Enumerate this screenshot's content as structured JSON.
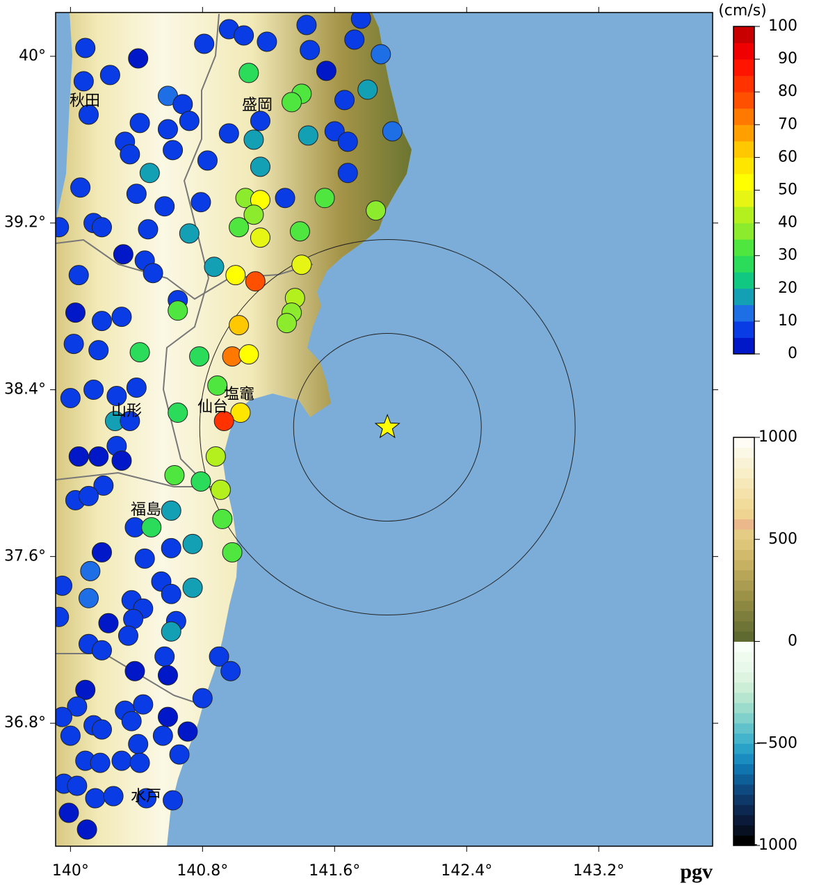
{
  "chart_data": {
    "type": "map",
    "label": "pgv",
    "xlim": [
      139.91,
      143.89
    ],
    "ylim": [
      36.21,
      40.21
    ],
    "xticks": [
      {
        "value": 140,
        "label": "140°"
      },
      {
        "value": 140.8,
        "label": "140.8°"
      },
      {
        "value": 141.6,
        "label": "141.6°"
      },
      {
        "value": 142.4,
        "label": "142.4°"
      },
      {
        "value": 143.2,
        "label": "143.2°"
      }
    ],
    "yticks": [
      {
        "value": 40,
        "label": "40°"
      },
      {
        "value": 39.2,
        "label": "39.2°"
      },
      {
        "value": 38.4,
        "label": "38.4°"
      },
      {
        "value": 37.6,
        "label": "37.6°"
      },
      {
        "value": 36.8,
        "label": "36.8°"
      }
    ],
    "cities": [
      "秋田",
      "盛岡",
      "山形",
      "仙台",
      "塩竈",
      "福島",
      "水戸"
    ],
    "epicenter": {
      "lon": 141.92,
      "lat": 38.22,
      "color": "#ffff00"
    },
    "land_colors": [
      "#6b7530",
      "#a59448",
      "#d8c880",
      "#f2eab8",
      "#fbf8e4"
    ],
    "sea_color": "#7badd8",
    "pgv_scale": {
      "unit": "(cm/s)",
      "lim": [
        0,
        100
      ],
      "ticks": [
        0,
        10,
        20,
        30,
        40,
        50,
        60,
        70,
        80,
        90,
        100
      ],
      "colors": [
        "#0018c8",
        "#0a3ce6",
        "#1e6ee6",
        "#14a0b4",
        "#10c882",
        "#2adc5a",
        "#50e640",
        "#8ceb2d",
        "#b4f01e",
        "#e6f514",
        "#ffff00",
        "#ffe600",
        "#ffc800",
        "#ffa000",
        "#ff7800",
        "#ff5000",
        "#ff3200",
        "#ff1400",
        "#f00000",
        "#c80000"
      ]
    },
    "elevation_scale": {
      "lim": [
        -1000,
        1000
      ],
      "ticks": [
        1000,
        500,
        0,
        {
          "value": -500,
          "label": "−500"
        },
        {
          "value": -1000,
          "label": "−1000"
        }
      ],
      "colors": [
        "#000000",
        "#061020",
        "#0a1a38",
        "#0c2850",
        "#0e3868",
        "#0e4a80",
        "#0e5e98",
        "#1074ae",
        "#1a8cc0",
        "#2aa2c8",
        "#44b4cc",
        "#62c2cc",
        "#80d0cc",
        "#9cdccc",
        "#b6e6d0",
        "#cceed6",
        "#ddf4e0",
        "#e8f8ea",
        "#f0fbf0",
        "#f8fef8",
        "#5f6a30",
        "#6e7436",
        "#7d7e3c",
        "#8c8842",
        "#9b9248",
        "#aa9c50",
        "#b8a658",
        "#c6b062",
        "#d2ba6c",
        "#dcc478",
        "#e4cc84",
        "#eab88a",
        "#eed490",
        "#f2dc9c",
        "#f4e2aa",
        "#f6e8b8",
        "#f8eec8",
        "#faf2d6",
        "#fcf8e6",
        "#fefcf4"
      ]
    },
    "stations": [
      {
        "lon": 140.09,
        "lat": 40.04,
        "pgv": 5
      },
      {
        "lon": 140.41,
        "lat": 39.99,
        "pgv": 4
      },
      {
        "lon": 140.24,
        "lat": 39.91,
        "pgv": 8
      },
      {
        "lon": 140.08,
        "lat": 39.88,
        "pgv": 6
      },
      {
        "lon": 140.81,
        "lat": 40.06,
        "pgv": 6
      },
      {
        "lon": 140.96,
        "lat": 40.13,
        "pgv": 5
      },
      {
        "lon": 141.05,
        "lat": 40.1,
        "pgv": 7
      },
      {
        "lon": 141.19,
        "lat": 40.07,
        "pgv": 6
      },
      {
        "lon": 141.43,
        "lat": 40.15,
        "pgv": 7
      },
      {
        "lon": 141.45,
        "lat": 40.03,
        "pgv": 6
      },
      {
        "lon": 141.55,
        "lat": 39.93,
        "pgv": 4
      },
      {
        "lon": 141.72,
        "lat": 40.08,
        "pgv": 7
      },
      {
        "lon": 141.76,
        "lat": 40.18,
        "pgv": 9
      },
      {
        "lon": 141.88,
        "lat": 40.01,
        "pgv": 10
      },
      {
        "lon": 141.8,
        "lat": 39.84,
        "pgv": 19
      },
      {
        "lon": 141.66,
        "lat": 39.79,
        "pgv": 8
      },
      {
        "lon": 141.08,
        "lat": 39.92,
        "pgv": 28
      },
      {
        "lon": 141.4,
        "lat": 39.82,
        "pgv": 30
      },
      {
        "lon": 141.34,
        "lat": 39.78,
        "pgv": 32
      },
      {
        "lon": 141.15,
        "lat": 39.69,
        "pgv": 8
      },
      {
        "lon": 140.96,
        "lat": 39.63,
        "pgv": 8
      },
      {
        "lon": 141.11,
        "lat": 39.6,
        "pgv": 18
      },
      {
        "lon": 141.44,
        "lat": 39.62,
        "pgv": 18
      },
      {
        "lon": 141.6,
        "lat": 39.64,
        "pgv": 7
      },
      {
        "lon": 141.68,
        "lat": 39.59,
        "pgv": 7
      },
      {
        "lon": 141.95,
        "lat": 39.64,
        "pgv": 10
      },
      {
        "lon": 140.59,
        "lat": 39.81,
        "pgv": 10
      },
      {
        "lon": 140.68,
        "lat": 39.77,
        "pgv": 7
      },
      {
        "lon": 140.72,
        "lat": 39.69,
        "pgv": 6
      },
      {
        "lon": 140.11,
        "lat": 39.72,
        "pgv": 8
      },
      {
        "lon": 140.42,
        "lat": 39.68,
        "pgv": 7
      },
      {
        "lon": 140.59,
        "lat": 39.65,
        "pgv": 6
      },
      {
        "lon": 140.33,
        "lat": 39.59,
        "pgv": 7
      },
      {
        "lon": 140.36,
        "lat": 39.53,
        "pgv": 9
      },
      {
        "lon": 140.62,
        "lat": 39.55,
        "pgv": 6
      },
      {
        "lon": 140.48,
        "lat": 39.44,
        "pgv": 17
      },
      {
        "lon": 140.83,
        "lat": 39.5,
        "pgv": 7
      },
      {
        "lon": 141.15,
        "lat": 39.47,
        "pgv": 17
      },
      {
        "lon": 141.68,
        "lat": 39.44,
        "pgv": 7
      },
      {
        "lon": 140.06,
        "lat": 39.37,
        "pgv": 7
      },
      {
        "lon": 140.4,
        "lat": 39.34,
        "pgv": 6
      },
      {
        "lon": 140.57,
        "lat": 39.28,
        "pgv": 8
      },
      {
        "lon": 140.79,
        "lat": 39.3,
        "pgv": 6
      },
      {
        "lon": 141.06,
        "lat": 39.32,
        "pgv": 38
      },
      {
        "lon": 141.15,
        "lat": 39.31,
        "pgv": 50
      },
      {
        "lon": 141.11,
        "lat": 39.24,
        "pgv": 36
      },
      {
        "lon": 141.3,
        "lat": 39.32,
        "pgv": 7
      },
      {
        "lon": 141.54,
        "lat": 39.32,
        "pgv": 33
      },
      {
        "lon": 141.85,
        "lat": 39.26,
        "pgv": 35
      },
      {
        "lon": 140.14,
        "lat": 39.2,
        "pgv": 7
      },
      {
        "lon": 140.19,
        "lat": 39.18,
        "pgv": 8
      },
      {
        "lon": 140.47,
        "lat": 39.17,
        "pgv": 7
      },
      {
        "lon": 140.72,
        "lat": 39.15,
        "pgv": 18
      },
      {
        "lon": 141.02,
        "lat": 39.18,
        "pgv": 33
      },
      {
        "lon": 141.15,
        "lat": 39.13,
        "pgv": 45
      },
      {
        "lon": 141.39,
        "lat": 39.16,
        "pgv": 33
      },
      {
        "lon": 139.93,
        "lat": 39.18,
        "pgv": 6
      },
      {
        "lon": 140.32,
        "lat": 39.05,
        "pgv": 4
      },
      {
        "lon": 140.45,
        "lat": 39.02,
        "pgv": 7
      },
      {
        "lon": 140.5,
        "lat": 38.96,
        "pgv": 6
      },
      {
        "lon": 140.87,
        "lat": 38.99,
        "pgv": 17
      },
      {
        "lon": 141.0,
        "lat": 38.95,
        "pgv": 52
      },
      {
        "lon": 141.12,
        "lat": 38.92,
        "pgv": 75
      },
      {
        "lon": 141.4,
        "lat": 39.0,
        "pgv": 48
      },
      {
        "lon": 140.05,
        "lat": 38.95,
        "pgv": 6
      },
      {
        "lon": 140.03,
        "lat": 38.77,
        "pgv": 3
      },
      {
        "lon": 140.19,
        "lat": 38.73,
        "pgv": 7
      },
      {
        "lon": 140.31,
        "lat": 38.75,
        "pgv": 7
      },
      {
        "lon": 140.65,
        "lat": 38.83,
        "pgv": 7
      },
      {
        "lon": 140.65,
        "lat": 38.78,
        "pgv": 33
      },
      {
        "lon": 141.36,
        "lat": 38.84,
        "pgv": 40
      },
      {
        "lon": 141.34,
        "lat": 38.77,
        "pgv": 36
      },
      {
        "lon": 141.31,
        "lat": 38.72,
        "pgv": 35
      },
      {
        "lon": 141.02,
        "lat": 38.71,
        "pgv": 63
      },
      {
        "lon": 140.02,
        "lat": 38.62,
        "pgv": 7
      },
      {
        "lon": 140.17,
        "lat": 38.59,
        "pgv": 8
      },
      {
        "lon": 140.42,
        "lat": 38.58,
        "pgv": 25
      },
      {
        "lon": 140.78,
        "lat": 38.56,
        "pgv": 28
      },
      {
        "lon": 140.98,
        "lat": 38.56,
        "pgv": 73
      },
      {
        "lon": 141.08,
        "lat": 38.57,
        "pgv": 52
      },
      {
        "lon": 140.14,
        "lat": 38.4,
        "pgv": 8
      },
      {
        "lon": 140.0,
        "lat": 38.36,
        "pgv": 8
      },
      {
        "lon": 140.28,
        "lat": 38.37,
        "pgv": 8
      },
      {
        "lon": 140.4,
        "lat": 38.41,
        "pgv": 8
      },
      {
        "lon": 140.89,
        "lat": 38.42,
        "pgv": 30
      },
      {
        "lon": 140.27,
        "lat": 38.25,
        "pgv": 18
      },
      {
        "lon": 140.36,
        "lat": 38.25,
        "pgv": 8
      },
      {
        "lon": 140.65,
        "lat": 38.29,
        "pgv": 28
      },
      {
        "lon": 141.03,
        "lat": 38.29,
        "pgv": 55
      },
      {
        "lon": 140.93,
        "lat": 38.25,
        "pgv": 80
      },
      {
        "lon": 140.28,
        "lat": 38.13,
        "pgv": 8
      },
      {
        "lon": 140.05,
        "lat": 38.08,
        "pgv": 4
      },
      {
        "lon": 140.17,
        "lat": 38.08,
        "pgv": 4
      },
      {
        "lon": 140.31,
        "lat": 38.06,
        "pgv": 4
      },
      {
        "lon": 140.88,
        "lat": 38.08,
        "pgv": 40
      },
      {
        "lon": 140.63,
        "lat": 37.99,
        "pgv": 30
      },
      {
        "lon": 140.2,
        "lat": 37.94,
        "pgv": 8
      },
      {
        "lon": 140.03,
        "lat": 37.87,
        "pgv": 7
      },
      {
        "lon": 140.11,
        "lat": 37.89,
        "pgv": 8
      },
      {
        "lon": 140.79,
        "lat": 37.96,
        "pgv": 27
      },
      {
        "lon": 140.91,
        "lat": 37.92,
        "pgv": 40
      },
      {
        "lon": 140.61,
        "lat": 37.82,
        "pgv": 18
      },
      {
        "lon": 140.39,
        "lat": 37.74,
        "pgv": 8
      },
      {
        "lon": 140.49,
        "lat": 37.74,
        "pgv": 28
      },
      {
        "lon": 140.92,
        "lat": 37.78,
        "pgv": 30
      },
      {
        "lon": 140.19,
        "lat": 37.62,
        "pgv": 4
      },
      {
        "lon": 140.61,
        "lat": 37.64,
        "pgv": 8
      },
      {
        "lon": 140.74,
        "lat": 37.66,
        "pgv": 18
      },
      {
        "lon": 140.45,
        "lat": 37.59,
        "pgv": 8
      },
      {
        "lon": 140.98,
        "lat": 37.62,
        "pgv": 30
      },
      {
        "lon": 140.12,
        "lat": 37.53,
        "pgv": 10
      },
      {
        "lon": 139.95,
        "lat": 37.46,
        "pgv": 8
      },
      {
        "lon": 140.11,
        "lat": 37.4,
        "pgv": 12
      },
      {
        "lon": 140.55,
        "lat": 37.48,
        "pgv": 8
      },
      {
        "lon": 140.61,
        "lat": 37.42,
        "pgv": 7
      },
      {
        "lon": 140.74,
        "lat": 37.45,
        "pgv": 18
      },
      {
        "lon": 140.37,
        "lat": 37.39,
        "pgv": 8
      },
      {
        "lon": 140.44,
        "lat": 37.35,
        "pgv": 7
      },
      {
        "lon": 139.93,
        "lat": 37.31,
        "pgv": 6
      },
      {
        "lon": 140.23,
        "lat": 37.28,
        "pgv": 4
      },
      {
        "lon": 140.38,
        "lat": 37.3,
        "pgv": 8
      },
      {
        "lon": 140.64,
        "lat": 37.29,
        "pgv": 6
      },
      {
        "lon": 140.35,
        "lat": 37.22,
        "pgv": 9
      },
      {
        "lon": 140.61,
        "lat": 37.24,
        "pgv": 16
      },
      {
        "lon": 140.11,
        "lat": 37.18,
        "pgv": 6
      },
      {
        "lon": 140.19,
        "lat": 37.15,
        "pgv": 7
      },
      {
        "lon": 140.57,
        "lat": 37.12,
        "pgv": 6
      },
      {
        "lon": 140.39,
        "lat": 37.05,
        "pgv": 4
      },
      {
        "lon": 140.59,
        "lat": 37.03,
        "pgv": 4
      },
      {
        "lon": 140.9,
        "lat": 37.12,
        "pgv": 7
      },
      {
        "lon": 140.97,
        "lat": 37.05,
        "pgv": 8
      },
      {
        "lon": 140.09,
        "lat": 36.96,
        "pgv": 4
      },
      {
        "lon": 140.04,
        "lat": 36.88,
        "pgv": 5
      },
      {
        "lon": 139.95,
        "lat": 36.83,
        "pgv": 5
      },
      {
        "lon": 140.33,
        "lat": 36.86,
        "pgv": 7
      },
      {
        "lon": 140.44,
        "lat": 36.89,
        "pgv": 5
      },
      {
        "lon": 140.8,
        "lat": 36.92,
        "pgv": 6
      },
      {
        "lon": 140.37,
        "lat": 36.81,
        "pgv": 7
      },
      {
        "lon": 140.59,
        "lat": 36.83,
        "pgv": 4
      },
      {
        "lon": 140.14,
        "lat": 36.79,
        "pgv": 6
      },
      {
        "lon": 140.19,
        "lat": 36.77,
        "pgv": 6
      },
      {
        "lon": 140.0,
        "lat": 36.74,
        "pgv": 7
      },
      {
        "lon": 140.56,
        "lat": 36.74,
        "pgv": 5
      },
      {
        "lon": 140.71,
        "lat": 36.76,
        "pgv": 4
      },
      {
        "lon": 140.41,
        "lat": 36.7,
        "pgv": 7
      },
      {
        "lon": 140.09,
        "lat": 36.62,
        "pgv": 8
      },
      {
        "lon": 140.18,
        "lat": 36.61,
        "pgv": 7
      },
      {
        "lon": 140.31,
        "lat": 36.62,
        "pgv": 7
      },
      {
        "lon": 140.42,
        "lat": 36.61,
        "pgv": 8
      },
      {
        "lon": 140.66,
        "lat": 36.65,
        "pgv": 7
      },
      {
        "lon": 139.96,
        "lat": 36.51,
        "pgv": 6
      },
      {
        "lon": 140.04,
        "lat": 36.5,
        "pgv": 6
      },
      {
        "lon": 140.15,
        "lat": 36.44,
        "pgv": 6
      },
      {
        "lon": 140.26,
        "lat": 36.45,
        "pgv": 6
      },
      {
        "lon": 140.46,
        "lat": 36.44,
        "pgv": 6
      },
      {
        "lon": 140.62,
        "lat": 36.43,
        "pgv": 5
      },
      {
        "lon": 139.99,
        "lat": 36.37,
        "pgv": 4
      },
      {
        "lon": 140.1,
        "lat": 36.29,
        "pgv": 4
      }
    ]
  }
}
